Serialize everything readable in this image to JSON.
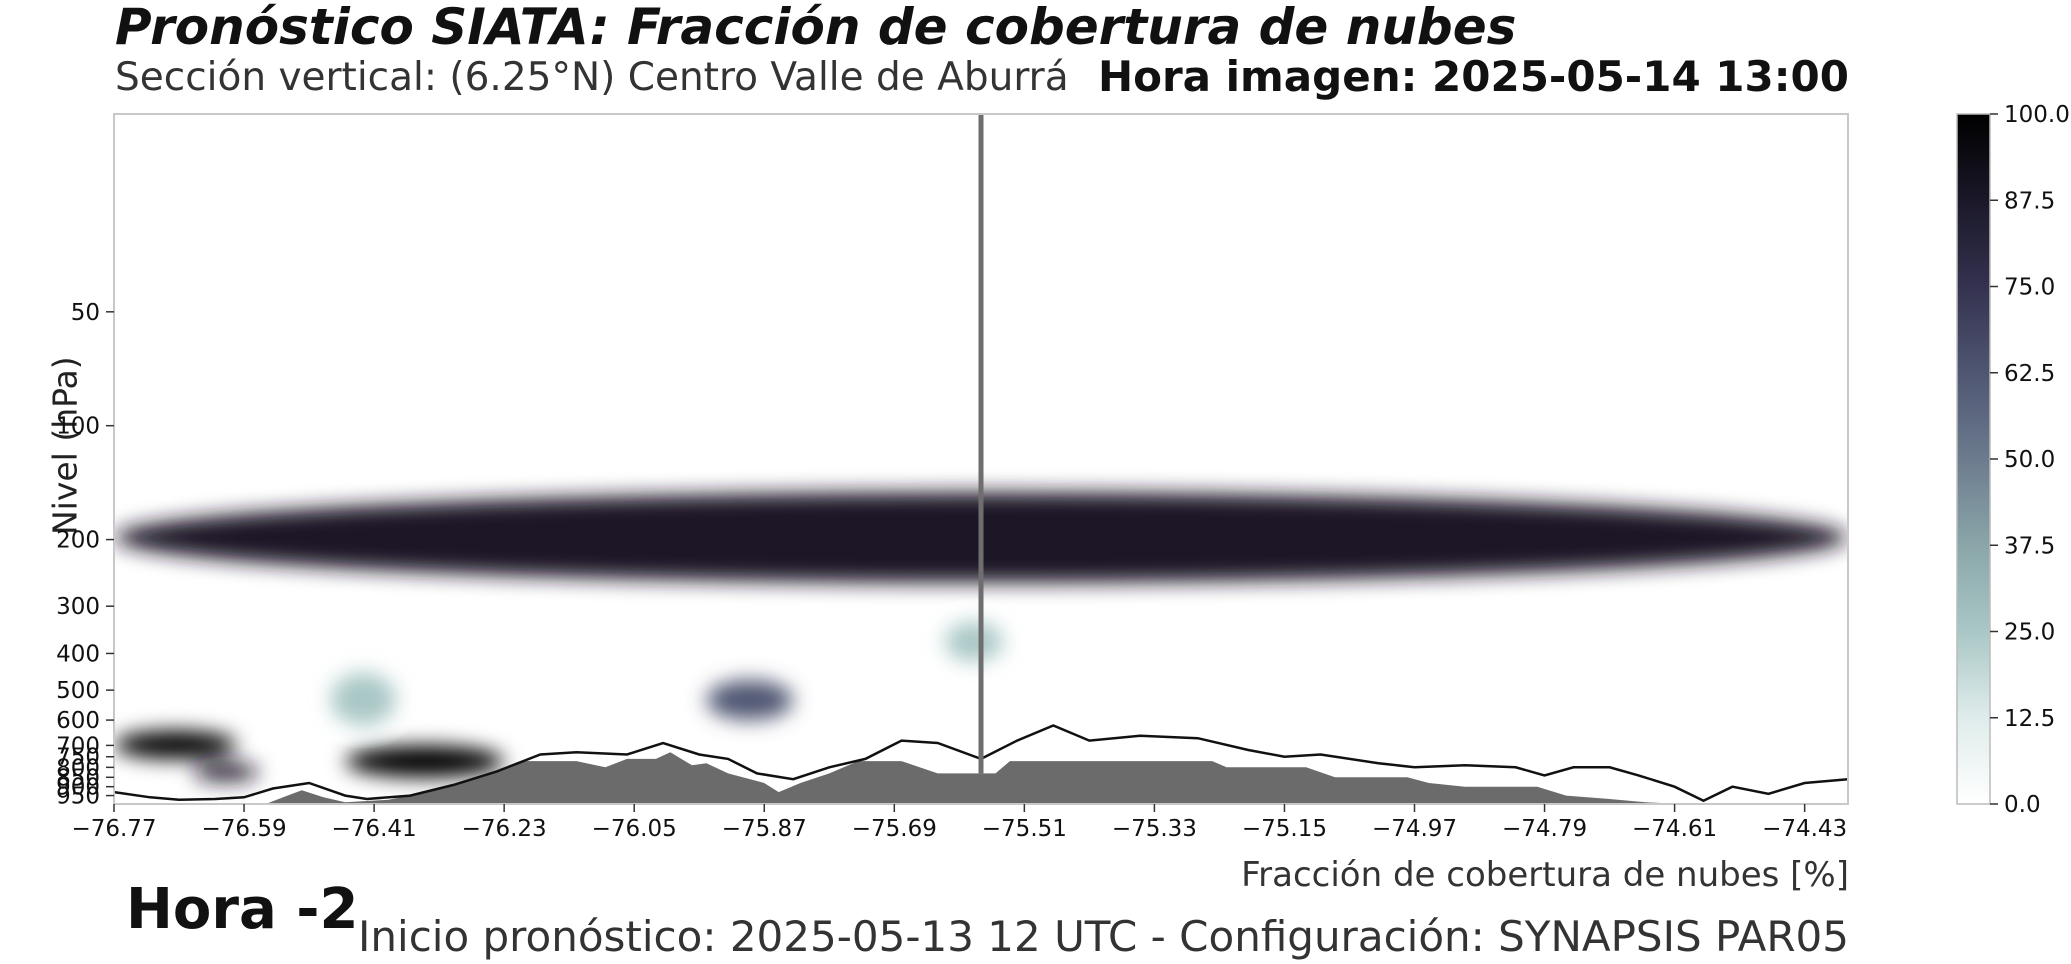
{
  "header": {
    "title": "Pronóstico SIATA: Fracción de cobertura de nubes",
    "subtitle": "Sección vertical: (6.25°N) Centro Valle de Aburrá",
    "frame_time": "Hora imagen: 2025-05-14 13:00"
  },
  "footer": {
    "xlabel": "Fracción de cobertura de nubes [%]",
    "hour_label": "Hora -2",
    "forecast_info": "Inicio pronóstico: 2025-05-13 12 UTC - Configuración: SYNAPSIS PAR05"
  },
  "chart_data": {
    "type": "heatmap",
    "xlabel": "",
    "ylabel": "Nivel (hPa)",
    "xlim": [
      -76.77,
      -74.37
    ],
    "ylim": [
      1000,
      15
    ],
    "x_ticks": [
      "−76.77",
      "−76.59",
      "−76.41",
      "−76.23",
      "−76.05",
      "−75.87",
      "−75.69",
      "−75.51",
      "−75.33",
      "−75.15",
      "−74.97",
      "−74.79",
      "−74.61",
      "−74.43"
    ],
    "x_tick_values": [
      -76.77,
      -76.59,
      -76.41,
      -76.23,
      -76.05,
      -75.87,
      -75.69,
      -75.51,
      -75.33,
      -75.15,
      -74.97,
      -74.79,
      -74.61,
      -74.43
    ],
    "y_ticks": [
      "50",
      "100",
      "200",
      "300",
      "400",
      "500",
      "600",
      "700",
      "750",
      "800",
      "850",
      "900",
      "950"
    ],
    "y_tick_values": [
      50,
      100,
      200,
      300,
      400,
      500,
      600,
      700,
      750,
      800,
      850,
      900,
      950
    ],
    "current_longitude": -75.57,
    "colorbar": {
      "ticks": [
        "0.0",
        "12.5",
        "25.0",
        "37.5",
        "50.0",
        "62.5",
        "75.0",
        "87.5",
        "100.0"
      ],
      "colors": [
        "#ffffff",
        "#dfeceb",
        "#a9c7c6",
        "#8aa6a9",
        "#6c7b8e",
        "#4f5672",
        "#34324f",
        "#1a1828",
        "#000000"
      ]
    },
    "cloud_regions": [
      {
        "lon": [
          -76.77,
          -74.37
        ],
        "p": [
          150,
          260
        ],
        "value": 90
      },
      {
        "lon": [
          -76.77,
          -76.6
        ],
        "p": [
          640,
          760
        ],
        "value": 95
      },
      {
        "lon": [
          -76.66,
          -76.57
        ],
        "p": [
          780,
          870
        ],
        "value": 90
      },
      {
        "lon": [
          -76.45,
          -76.23
        ],
        "p": [
          700,
          850
        ],
        "value": 95
      },
      {
        "lon": [
          -75.95,
          -75.83
        ],
        "p": [
          470,
          600
        ],
        "value": 60
      },
      {
        "lon": [
          -75.62,
          -75.54
        ],
        "p": [
          330,
          420
        ],
        "value": 25
      },
      {
        "lon": [
          -76.47,
          -76.38
        ],
        "p": [
          450,
          620
        ],
        "value": 30
      }
    ],
    "surface_pressure_hPa": [
      [
        -76.77,
        1000
      ],
      [
        -76.56,
        1000
      ],
      [
        -76.53,
        950
      ],
      [
        -76.51,
        920
      ],
      [
        -76.48,
        960
      ],
      [
        -76.45,
        990
      ],
      [
        -76.39,
        975
      ],
      [
        -76.35,
        940
      ],
      [
        -76.31,
        900
      ],
      [
        -76.26,
        850
      ],
      [
        -76.2,
        770
      ],
      [
        -76.13,
        770
      ],
      [
        -76.09,
        800
      ],
      [
        -76.06,
        760
      ],
      [
        -76.02,
        760
      ],
      [
        -76.0,
        730
      ],
      [
        -75.97,
        790
      ],
      [
        -75.95,
        780
      ],
      [
        -75.92,
        830
      ],
      [
        -75.87,
        880
      ],
      [
        -75.85,
        930
      ],
      [
        -75.82,
        880
      ],
      [
        -75.78,
        830
      ],
      [
        -75.74,
        770
      ],
      [
        -75.68,
        770
      ],
      [
        -75.63,
        830
      ],
      [
        -75.55,
        830
      ],
      [
        -75.53,
        770
      ],
      [
        -75.25,
        770
      ],
      [
        -75.23,
        800
      ],
      [
        -75.12,
        800
      ],
      [
        -75.08,
        850
      ],
      [
        -74.98,
        850
      ],
      [
        -74.95,
        880
      ],
      [
        -74.9,
        900
      ],
      [
        -74.8,
        900
      ],
      [
        -74.76,
        950
      ],
      [
        -74.7,
        970
      ],
      [
        -74.65,
        990
      ],
      [
        -74.6,
        1000
      ],
      [
        -74.37,
        1000
      ]
    ],
    "boundary_line_hPa": [
      [
        -76.77,
        930
      ],
      [
        -76.72,
        960
      ],
      [
        -76.68,
        975
      ],
      [
        -76.63,
        970
      ],
      [
        -76.59,
        960
      ],
      [
        -76.55,
        910
      ],
      [
        -76.5,
        880
      ],
      [
        -76.45,
        950
      ],
      [
        -76.42,
        970
      ],
      [
        -76.36,
        950
      ],
      [
        -76.3,
        890
      ],
      [
        -76.24,
        820
      ],
      [
        -76.18,
        740
      ],
      [
        -76.13,
        730
      ],
      [
        -76.06,
        740
      ],
      [
        -76.01,
        690
      ],
      [
        -75.96,
        740
      ],
      [
        -75.92,
        760
      ],
      [
        -75.88,
        830
      ],
      [
        -75.83,
        860
      ],
      [
        -75.78,
        800
      ],
      [
        -75.73,
        760
      ],
      [
        -75.68,
        680
      ],
      [
        -75.63,
        690
      ],
      [
        -75.57,
        760
      ],
      [
        -75.52,
        680
      ],
      [
        -75.47,
        620
      ],
      [
        -75.42,
        680
      ],
      [
        -75.35,
        660
      ],
      [
        -75.27,
        670
      ],
      [
        -75.2,
        720
      ],
      [
        -75.15,
        750
      ],
      [
        -75.1,
        740
      ],
      [
        -75.02,
        780
      ],
      [
        -74.97,
        800
      ],
      [
        -74.9,
        790
      ],
      [
        -74.83,
        800
      ],
      [
        -74.79,
        840
      ],
      [
        -74.75,
        800
      ],
      [
        -74.7,
        800
      ],
      [
        -74.66,
        840
      ],
      [
        -74.61,
        900
      ],
      [
        -74.57,
        980
      ],
      [
        -74.53,
        900
      ],
      [
        -74.48,
        940
      ],
      [
        -74.43,
        880
      ],
      [
        -74.37,
        860
      ]
    ]
  }
}
